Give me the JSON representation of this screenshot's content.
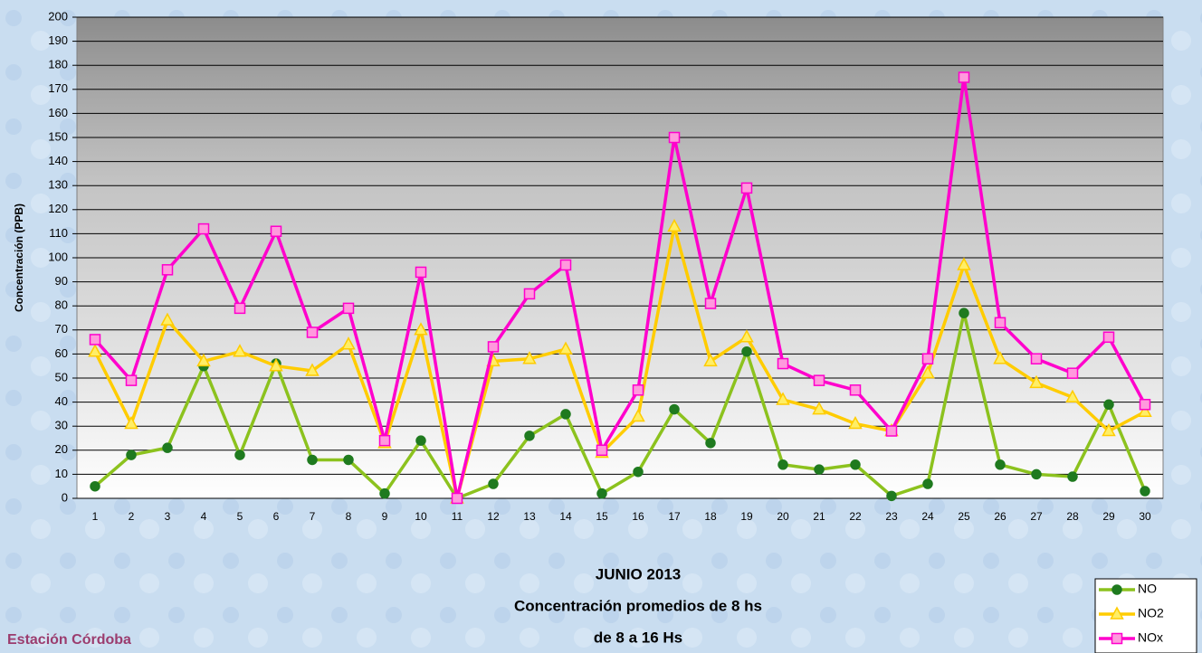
{
  "chart_data": {
    "type": "line",
    "title": "JUNIO 2013",
    "subtitle": [
      "Concentración promedios de 8 hs",
      "de 8 a 16 Hs"
    ],
    "annotation": "Estación Córdoba",
    "y_label": "Concentración (PPB)",
    "categories": [
      1,
      2,
      3,
      4,
      5,
      6,
      7,
      8,
      9,
      10,
      11,
      12,
      13,
      14,
      15,
      16,
      17,
      18,
      19,
      20,
      21,
      22,
      23,
      24,
      25,
      26,
      27,
      28,
      29,
      30
    ],
    "series": [
      {
        "name": "NO",
        "color": "#8cc21e",
        "marker": "circle",
        "marker_color": "#1f7a1f",
        "values": [
          5,
          18,
          21,
          55,
          18,
          56,
          16,
          16,
          2,
          24,
          0,
          6,
          26,
          35,
          2,
          11,
          37,
          23,
          61,
          14,
          12,
          14,
          1,
          6,
          77,
          14,
          10,
          9,
          39,
          3
        ]
      },
      {
        "name": "NO2",
        "color": "#ffcc00",
        "marker": "triangle",
        "marker_color": "#ffee66",
        "values": [
          61,
          31,
          74,
          57,
          61,
          55,
          53,
          64,
          23,
          70,
          0,
          57,
          58,
          62,
          19,
          34,
          113,
          57,
          67,
          41,
          37,
          31,
          28,
          52,
          97,
          58,
          48,
          42,
          28,
          36
        ]
      },
      {
        "name": "NOx",
        "color": "#ff00cc",
        "marker": "square",
        "marker_color": "#ff99dd",
        "values": [
          66,
          49,
          95,
          112,
          79,
          111,
          69,
          79,
          24,
          94,
          0,
          63,
          85,
          97,
          20,
          45,
          150,
          81,
          129,
          56,
          49,
          45,
          28,
          58,
          175,
          73,
          58,
          52,
          67,
          39
        ]
      }
    ],
    "ylim": [
      0,
      200
    ],
    "yticks": [
      0,
      10,
      20,
      30,
      40,
      50,
      60,
      70,
      80,
      90,
      100,
      110,
      120,
      130,
      140,
      150,
      160,
      170,
      180,
      190,
      200
    ],
    "grid": true,
    "legend": "bottom-right"
  }
}
